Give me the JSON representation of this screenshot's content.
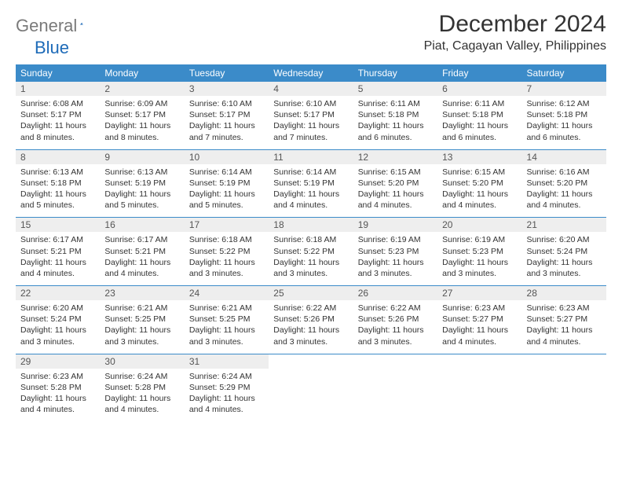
{
  "logo": {
    "gray": "General",
    "blue": "Blue"
  },
  "title": "December 2024",
  "location": "Piat, Cagayan Valley, Philippines",
  "dow": [
    "Sunday",
    "Monday",
    "Tuesday",
    "Wednesday",
    "Thursday",
    "Friday",
    "Saturday"
  ],
  "header_bg": "#3b8bc9",
  "daynum_bg": "#eeeeee",
  "rule_color": "#3b8bc9",
  "days": [
    {
      "n": "1",
      "sr": "6:08 AM",
      "ss": "5:17 PM",
      "dl": "11 hours and 8 minutes."
    },
    {
      "n": "2",
      "sr": "6:09 AM",
      "ss": "5:17 PM",
      "dl": "11 hours and 8 minutes."
    },
    {
      "n": "3",
      "sr": "6:10 AM",
      "ss": "5:17 PM",
      "dl": "11 hours and 7 minutes."
    },
    {
      "n": "4",
      "sr": "6:10 AM",
      "ss": "5:17 PM",
      "dl": "11 hours and 7 minutes."
    },
    {
      "n": "5",
      "sr": "6:11 AM",
      "ss": "5:18 PM",
      "dl": "11 hours and 6 minutes."
    },
    {
      "n": "6",
      "sr": "6:11 AM",
      "ss": "5:18 PM",
      "dl": "11 hours and 6 minutes."
    },
    {
      "n": "7",
      "sr": "6:12 AM",
      "ss": "5:18 PM",
      "dl": "11 hours and 6 minutes."
    },
    {
      "n": "8",
      "sr": "6:13 AM",
      "ss": "5:18 PM",
      "dl": "11 hours and 5 minutes."
    },
    {
      "n": "9",
      "sr": "6:13 AM",
      "ss": "5:19 PM",
      "dl": "11 hours and 5 minutes."
    },
    {
      "n": "10",
      "sr": "6:14 AM",
      "ss": "5:19 PM",
      "dl": "11 hours and 5 minutes."
    },
    {
      "n": "11",
      "sr": "6:14 AM",
      "ss": "5:19 PM",
      "dl": "11 hours and 4 minutes."
    },
    {
      "n": "12",
      "sr": "6:15 AM",
      "ss": "5:20 PM",
      "dl": "11 hours and 4 minutes."
    },
    {
      "n": "13",
      "sr": "6:15 AM",
      "ss": "5:20 PM",
      "dl": "11 hours and 4 minutes."
    },
    {
      "n": "14",
      "sr": "6:16 AM",
      "ss": "5:20 PM",
      "dl": "11 hours and 4 minutes."
    },
    {
      "n": "15",
      "sr": "6:17 AM",
      "ss": "5:21 PM",
      "dl": "11 hours and 4 minutes."
    },
    {
      "n": "16",
      "sr": "6:17 AM",
      "ss": "5:21 PM",
      "dl": "11 hours and 4 minutes."
    },
    {
      "n": "17",
      "sr": "6:18 AM",
      "ss": "5:22 PM",
      "dl": "11 hours and 3 minutes."
    },
    {
      "n": "18",
      "sr": "6:18 AM",
      "ss": "5:22 PM",
      "dl": "11 hours and 3 minutes."
    },
    {
      "n": "19",
      "sr": "6:19 AM",
      "ss": "5:23 PM",
      "dl": "11 hours and 3 minutes."
    },
    {
      "n": "20",
      "sr": "6:19 AM",
      "ss": "5:23 PM",
      "dl": "11 hours and 3 minutes."
    },
    {
      "n": "21",
      "sr": "6:20 AM",
      "ss": "5:24 PM",
      "dl": "11 hours and 3 minutes."
    },
    {
      "n": "22",
      "sr": "6:20 AM",
      "ss": "5:24 PM",
      "dl": "11 hours and 3 minutes."
    },
    {
      "n": "23",
      "sr": "6:21 AM",
      "ss": "5:25 PM",
      "dl": "11 hours and 3 minutes."
    },
    {
      "n": "24",
      "sr": "6:21 AM",
      "ss": "5:25 PM",
      "dl": "11 hours and 3 minutes."
    },
    {
      "n": "25",
      "sr": "6:22 AM",
      "ss": "5:26 PM",
      "dl": "11 hours and 3 minutes."
    },
    {
      "n": "26",
      "sr": "6:22 AM",
      "ss": "5:26 PM",
      "dl": "11 hours and 3 minutes."
    },
    {
      "n": "27",
      "sr": "6:23 AM",
      "ss": "5:27 PM",
      "dl": "11 hours and 4 minutes."
    },
    {
      "n": "28",
      "sr": "6:23 AM",
      "ss": "5:27 PM",
      "dl": "11 hours and 4 minutes."
    },
    {
      "n": "29",
      "sr": "6:23 AM",
      "ss": "5:28 PM",
      "dl": "11 hours and 4 minutes."
    },
    {
      "n": "30",
      "sr": "6:24 AM",
      "ss": "5:28 PM",
      "dl": "11 hours and 4 minutes."
    },
    {
      "n": "31",
      "sr": "6:24 AM",
      "ss": "5:29 PM",
      "dl": "11 hours and 4 minutes."
    }
  ],
  "labels": {
    "sunrise": "Sunrise:",
    "sunset": "Sunset:",
    "daylight": "Daylight:"
  }
}
